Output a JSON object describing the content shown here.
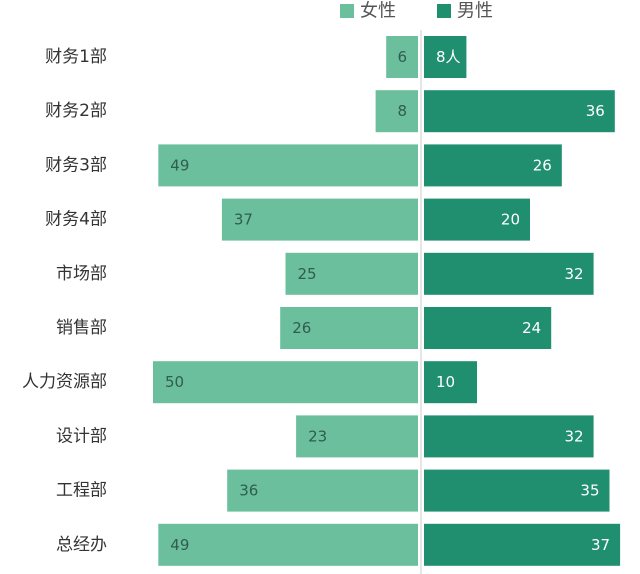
{
  "chart_data": {
    "type": "bar",
    "orientation": "horizontal-diverging",
    "title": "",
    "xlabel": "",
    "ylabel": "",
    "categories": [
      "财务1部",
      "财务2部",
      "财务3部",
      "财务4部",
      "市场部",
      "销售部",
      "人力资源部",
      "设计部",
      "工程部",
      "总经办"
    ],
    "series": [
      {
        "name": "女性",
        "values": [
          6,
          8,
          49,
          37,
          25,
          26,
          50,
          23,
          36,
          49
        ],
        "color": "#6bbf9c",
        "side": "left"
      },
      {
        "name": "男性",
        "values": [
          8,
          36,
          26,
          20,
          32,
          24,
          10,
          32,
          35,
          37
        ],
        "color": "#1f8f70",
        "side": "right"
      }
    ],
    "value_labels": {
      "女性": [
        "6",
        "8",
        "49",
        "37",
        "25",
        "26",
        "50",
        "23",
        "36",
        "49"
      ],
      "男性": [
        "8人",
        "36",
        "26",
        "20",
        "32",
        "24",
        "10",
        "32",
        "35",
        "37"
      ]
    },
    "xlim": [
      0,
      50
    ],
    "legend": "top-right",
    "grid": false
  }
}
